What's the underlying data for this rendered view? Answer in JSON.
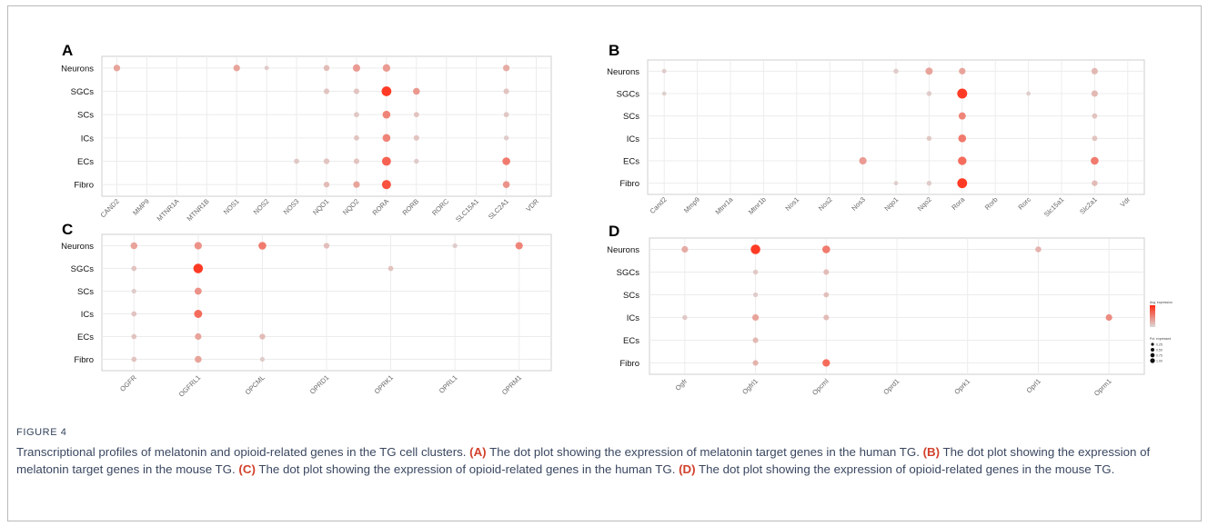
{
  "figure": {
    "label": "FIGURE 4",
    "caption": [
      {
        "t": "Transcriptional profiles of melatonin and opioid-related genes in the TG cell clusters. ",
        "b": false
      },
      {
        "t": "(A)",
        "b": true
      },
      {
        "t": " The dot plot showing the expression of melatonin target genes in the human TG. ",
        "b": false
      },
      {
        "t": "(B)",
        "b": true
      },
      {
        "t": " The dot plot showing the expression of melatonin target genes in the mouse TG. ",
        "b": false
      },
      {
        "t": "(C)",
        "b": true
      },
      {
        "t": " The dot plot showing the expression of opioid-related genes in the human TG. ",
        "b": false
      },
      {
        "t": "(D)",
        "b": true
      },
      {
        "t": " The dot plot showing the expression of opioid-related genes in the mouse TG.",
        "b": false
      }
    ]
  },
  "colors": {
    "low": "#d9d9d9",
    "high": "#ff2a12",
    "frame": "#b9b9b9",
    "caption_bold": "#d2402b"
  },
  "chart_data": [
    {
      "panel": "A",
      "type": "scatter",
      "cell_types": [
        "Neurons",
        "SGCs",
        "SCs",
        "ICs",
        "ECs",
        "Fibro"
      ],
      "genes": [
        "CAND2",
        "MMP9",
        "MTNR1A",
        "MTNR1B",
        "NOS1",
        "NOS2",
        "NOS3",
        "NQO1",
        "NQO2",
        "RORA",
        "RORB",
        "RORC",
        "SLC15A1",
        "SLC2A1",
        "VDR"
      ],
      "points": [
        {
          "gene": "CAND2",
          "cell": "Neurons",
          "pct": 0.3,
          "expr": 0.35
        },
        {
          "gene": "NOS1",
          "cell": "Neurons",
          "pct": 0.3,
          "expr": 0.35
        },
        {
          "gene": "NOS2",
          "cell": "Neurons",
          "pct": 0.08,
          "expr": 0.1
        },
        {
          "gene": "NQO1",
          "cell": "Neurons",
          "pct": 0.22,
          "expr": 0.2
        },
        {
          "gene": "NQO2",
          "cell": "Neurons",
          "pct": 0.42,
          "expr": 0.4
        },
        {
          "gene": "RORA",
          "cell": "Neurons",
          "pct": 0.45,
          "expr": 0.4
        },
        {
          "gene": "SLC2A1",
          "cell": "Neurons",
          "pct": 0.3,
          "expr": 0.3
        },
        {
          "gene": "NQO1",
          "cell": "SGCs",
          "pct": 0.18,
          "expr": 0.15
        },
        {
          "gene": "NQO2",
          "cell": "SGCs",
          "pct": 0.18,
          "expr": 0.15
        },
        {
          "gene": "RORA",
          "cell": "SGCs",
          "pct": 0.9,
          "expr": 1.0
        },
        {
          "gene": "RORB",
          "cell": "SGCs",
          "pct": 0.35,
          "expr": 0.42
        },
        {
          "gene": "SLC2A1",
          "cell": "SGCs",
          "pct": 0.18,
          "expr": 0.15
        },
        {
          "gene": "NQO2",
          "cell": "SCs",
          "pct": 0.15,
          "expr": 0.12
        },
        {
          "gene": "RORA",
          "cell": "SCs",
          "pct": 0.5,
          "expr": 0.55
        },
        {
          "gene": "RORB",
          "cell": "SCs",
          "pct": 0.15,
          "expr": 0.15
        },
        {
          "gene": "SLC2A1",
          "cell": "SCs",
          "pct": 0.15,
          "expr": 0.12
        },
        {
          "gene": "NQO2",
          "cell": "ICs",
          "pct": 0.15,
          "expr": 0.15
        },
        {
          "gene": "RORA",
          "cell": "ICs",
          "pct": 0.5,
          "expr": 0.55
        },
        {
          "gene": "RORB",
          "cell": "ICs",
          "pct": 0.18,
          "expr": 0.15
        },
        {
          "gene": "SLC2A1",
          "cell": "ICs",
          "pct": 0.12,
          "expr": 0.1
        },
        {
          "gene": "NOS3",
          "cell": "ECs",
          "pct": 0.15,
          "expr": 0.12
        },
        {
          "gene": "NQO1",
          "cell": "ECs",
          "pct": 0.2,
          "expr": 0.15
        },
        {
          "gene": "NQO2",
          "cell": "ECs",
          "pct": 0.18,
          "expr": 0.15
        },
        {
          "gene": "RORA",
          "cell": "ECs",
          "pct": 0.72,
          "expr": 0.75
        },
        {
          "gene": "RORB",
          "cell": "ECs",
          "pct": 0.12,
          "expr": 0.1
        },
        {
          "gene": "SLC2A1",
          "cell": "ECs",
          "pct": 0.5,
          "expr": 0.6
        },
        {
          "gene": "NQO1",
          "cell": "Fibro",
          "pct": 0.2,
          "expr": 0.2
        },
        {
          "gene": "NQO2",
          "cell": "Fibro",
          "pct": 0.3,
          "expr": 0.35
        },
        {
          "gene": "RORA",
          "cell": "Fibro",
          "pct": 0.75,
          "expr": 0.85
        },
        {
          "gene": "SLC2A1",
          "cell": "Fibro",
          "pct": 0.35,
          "expr": 0.45
        }
      ]
    },
    {
      "panel": "B",
      "type": "scatter",
      "cell_types": [
        "Neurons",
        "SGCs",
        "SCs",
        "ICs",
        "ECs",
        "Fibro"
      ],
      "genes": [
        "Cand2",
        "Mmp9",
        "Mtnr1a",
        "Mtnr1b",
        "Nos1",
        "Nos2",
        "Nos3",
        "Nqo1",
        "Nqo2",
        "Rora",
        "Rorb",
        "Rorc",
        "Slc15a1",
        "Slc2a1",
        "Vdr"
      ],
      "points": [
        {
          "gene": "Cand2",
          "cell": "Neurons",
          "pct": 0.08,
          "expr": 0.1
        },
        {
          "gene": "Nqo1",
          "cell": "Neurons",
          "pct": 0.12,
          "expr": 0.1
        },
        {
          "gene": "Nqo2",
          "cell": "Neurons",
          "pct": 0.4,
          "expr": 0.35
        },
        {
          "gene": "Rora",
          "cell": "Neurons",
          "pct": 0.3,
          "expr": 0.35
        },
        {
          "gene": "Slc2a1",
          "cell": "Neurons",
          "pct": 0.28,
          "expr": 0.22
        },
        {
          "gene": "Cand2",
          "cell": "SGCs",
          "pct": 0.06,
          "expr": 0.08
        },
        {
          "gene": "Nqo2",
          "cell": "SGCs",
          "pct": 0.12,
          "expr": 0.1
        },
        {
          "gene": "Rora",
          "cell": "SGCs",
          "pct": 0.95,
          "expr": 1.0
        },
        {
          "gene": "Rorc",
          "cell": "SGCs",
          "pct": 0.07,
          "expr": 0.08
        },
        {
          "gene": "Slc2a1",
          "cell": "SGCs",
          "pct": 0.28,
          "expr": 0.22
        },
        {
          "gene": "Rora",
          "cell": "SCs",
          "pct": 0.4,
          "expr": 0.55
        },
        {
          "gene": "Slc2a1",
          "cell": "SCs",
          "pct": 0.15,
          "expr": 0.15
        },
        {
          "gene": "Nqo2",
          "cell": "ICs",
          "pct": 0.12,
          "expr": 0.12
        },
        {
          "gene": "Rora",
          "cell": "ICs",
          "pct": 0.5,
          "expr": 0.6
        },
        {
          "gene": "Slc2a1",
          "cell": "ICs",
          "pct": 0.15,
          "expr": 0.15
        },
        {
          "gene": "Nos3",
          "cell": "ECs",
          "pct": 0.42,
          "expr": 0.4
        },
        {
          "gene": "Rora",
          "cell": "ECs",
          "pct": 0.62,
          "expr": 0.7
        },
        {
          "gene": "Slc2a1",
          "cell": "ECs",
          "pct": 0.5,
          "expr": 0.6
        },
        {
          "gene": "Nqo1",
          "cell": "Fibro",
          "pct": 0.07,
          "expr": 0.08
        },
        {
          "gene": "Nqo2",
          "cell": "Fibro",
          "pct": 0.12,
          "expr": 0.1
        },
        {
          "gene": "Rora",
          "cell": "Fibro",
          "pct": 0.92,
          "expr": 1.0
        },
        {
          "gene": "Slc2a1",
          "cell": "Fibro",
          "pct": 0.2,
          "expr": 0.2
        }
      ]
    },
    {
      "panel": "C",
      "type": "scatter",
      "cell_types": [
        "Neurons",
        "SGCs",
        "SCs",
        "ICs",
        "ECs",
        "Fibro"
      ],
      "genes": [
        "OGFR",
        "OGFRL1",
        "OPCML",
        "OPRD1",
        "OPRK1",
        "OPRL1",
        "OPRM1"
      ],
      "points": [
        {
          "gene": "OGFR",
          "cell": "Neurons",
          "pct": 0.35,
          "expr": 0.35
        },
        {
          "gene": "OGFRL1",
          "cell": "Neurons",
          "pct": 0.45,
          "expr": 0.45
        },
        {
          "gene": "OPCML",
          "cell": "Neurons",
          "pct": 0.5,
          "expr": 0.6
        },
        {
          "gene": "OPRD1",
          "cell": "Neurons",
          "pct": 0.2,
          "expr": 0.18
        },
        {
          "gene": "OPRL1",
          "cell": "Neurons",
          "pct": 0.1,
          "expr": 0.1
        },
        {
          "gene": "OPRM1",
          "cell": "Neurons",
          "pct": 0.42,
          "expr": 0.55
        },
        {
          "gene": "OGFR",
          "cell": "SGCs",
          "pct": 0.15,
          "expr": 0.15
        },
        {
          "gene": "OGFRL1",
          "cell": "SGCs",
          "pct": 0.85,
          "expr": 1.0
        },
        {
          "gene": "OPRK1",
          "cell": "SGCs",
          "pct": 0.15,
          "expr": 0.15
        },
        {
          "gene": "OGFR",
          "cell": "SCs",
          "pct": 0.1,
          "expr": 0.1
        },
        {
          "gene": "OGFRL1",
          "cell": "SCs",
          "pct": 0.38,
          "expr": 0.45
        },
        {
          "gene": "OGFR",
          "cell": "ICs",
          "pct": 0.15,
          "expr": 0.15
        },
        {
          "gene": "OGFRL1",
          "cell": "ICs",
          "pct": 0.55,
          "expr": 0.7
        },
        {
          "gene": "OGFR",
          "cell": "ECs",
          "pct": 0.15,
          "expr": 0.15
        },
        {
          "gene": "OGFRL1",
          "cell": "ECs",
          "pct": 0.3,
          "expr": 0.35
        },
        {
          "gene": "OPCML",
          "cell": "ECs",
          "pct": 0.2,
          "expr": 0.2
        },
        {
          "gene": "OGFR",
          "cell": "Fibro",
          "pct": 0.15,
          "expr": 0.15
        },
        {
          "gene": "OGFRL1",
          "cell": "Fibro",
          "pct": 0.35,
          "expr": 0.35
        },
        {
          "gene": "OPCML",
          "cell": "Fibro",
          "pct": 0.1,
          "expr": 0.1
        }
      ]
    },
    {
      "panel": "D",
      "type": "scatter",
      "cell_types": [
        "Neurons",
        "SGCs",
        "SCs",
        "ICs",
        "ECs",
        "Fibro"
      ],
      "genes": [
        "Ogfr",
        "Ogfrl1",
        "Opcml",
        "Oprd1",
        "Oprk1",
        "Oprl1",
        "Oprm1"
      ],
      "points": [
        {
          "gene": "Ogfr",
          "cell": "Neurons",
          "pct": 0.3,
          "expr": 0.3
        },
        {
          "gene": "Ogfrl1",
          "cell": "Neurons",
          "pct": 0.85,
          "expr": 1.0
        },
        {
          "gene": "Opcml",
          "cell": "Neurons",
          "pct": 0.5,
          "expr": 0.6
        },
        {
          "gene": "Oprl1",
          "cell": "Neurons",
          "pct": 0.22,
          "expr": 0.25
        },
        {
          "gene": "Ogfrl1",
          "cell": "SGCs",
          "pct": 0.12,
          "expr": 0.12
        },
        {
          "gene": "Opcml",
          "cell": "SGCs",
          "pct": 0.18,
          "expr": 0.2
        },
        {
          "gene": "Ogfrl1",
          "cell": "SCs",
          "pct": 0.1,
          "expr": 0.1
        },
        {
          "gene": "Opcml",
          "cell": "SCs",
          "pct": 0.15,
          "expr": 0.18
        },
        {
          "gene": "Ogfr",
          "cell": "ICs",
          "pct": 0.12,
          "expr": 0.12
        },
        {
          "gene": "Ogfrl1",
          "cell": "ICs",
          "pct": 0.3,
          "expr": 0.35
        },
        {
          "gene": "Opcml",
          "cell": "ICs",
          "pct": 0.18,
          "expr": 0.2
        },
        {
          "gene": "Oprm1",
          "cell": "ICs",
          "pct": 0.3,
          "expr": 0.5
        },
        {
          "gene": "Ogfrl1",
          "cell": "ECs",
          "pct": 0.18,
          "expr": 0.22
        },
        {
          "gene": "Ogfrl1",
          "cell": "Fibro",
          "pct": 0.18,
          "expr": 0.25
        },
        {
          "gene": "Opcml",
          "cell": "Fibro",
          "pct": 0.45,
          "expr": 0.7
        }
      ],
      "legend": {
        "placement": "right",
        "color_title": "Avg. expression",
        "size_title": "Pct. expressed",
        "size_labels": [
          "0.25",
          "0.50",
          "0.75",
          "1.00"
        ],
        "size_values": [
          0.25,
          0.5,
          0.75,
          1.0
        ]
      }
    }
  ]
}
